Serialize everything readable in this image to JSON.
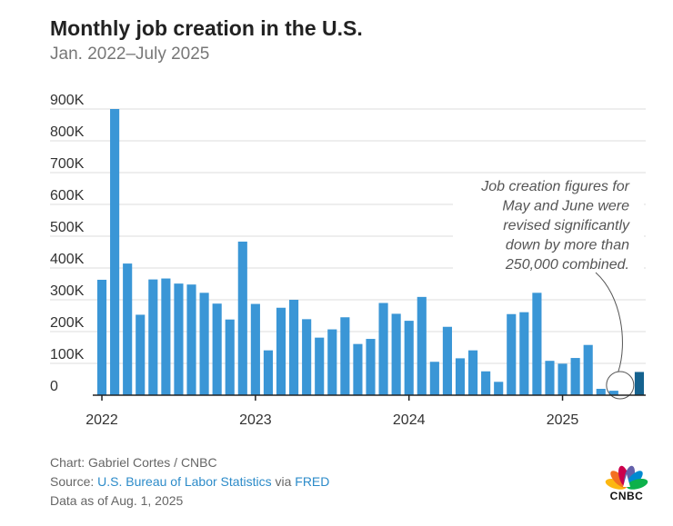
{
  "title": "Monthly job creation in the U.S.",
  "subtitle": "Jan. 2022–July 2025",
  "chart_data": {
    "type": "bar",
    "title": "Monthly job creation in the U.S.",
    "subtitle": "Jan. 2022–July 2025",
    "ylim": [
      0,
      900000
    ],
    "y_ticks": [
      0,
      100000,
      200000,
      300000,
      400000,
      500000,
      600000,
      700000,
      800000,
      900000
    ],
    "y_tick_labels": [
      "0",
      "100K",
      "200K",
      "300K",
      "400K",
      "500K",
      "600K",
      "700K",
      "800K",
      "900K"
    ],
    "x_tick_labels": [
      "2022",
      "2023",
      "2024",
      "2025"
    ],
    "x_tick_months": [
      1,
      13,
      25,
      37
    ],
    "grid": true,
    "categories": [
      "Jan 2022",
      "Feb 2022",
      "Mar 2022",
      "Apr 2022",
      "May 2022",
      "Jun 2022",
      "Jul 2022",
      "Aug 2022",
      "Sep 2022",
      "Oct 2022",
      "Nov 2022",
      "Dec 2022",
      "Jan 2023",
      "Feb 2023",
      "Mar 2023",
      "Apr 2023",
      "May 2023",
      "Jun 2023",
      "Jul 2023",
      "Aug 2023",
      "Sep 2023",
      "Oct 2023",
      "Nov 2023",
      "Dec 2023",
      "Jan 2024",
      "Feb 2024",
      "Mar 2024",
      "Apr 2024",
      "May 2024",
      "Jun 2024",
      "Jul 2024",
      "Aug 2024",
      "Sep 2024",
      "Oct 2024",
      "Nov 2024",
      "Dec 2024",
      "Jan 2025",
      "Feb 2025",
      "Mar 2025",
      "Apr 2025",
      "May 2025",
      "Jun 2025",
      "Jul 2025"
    ],
    "values": [
      363000,
      900000,
      414000,
      253000,
      364000,
      367000,
      351000,
      348000,
      322000,
      288000,
      238000,
      483000,
      287000,
      141000,
      275000,
      300000,
      239000,
      181000,
      207000,
      245000,
      161000,
      177000,
      290000,
      256000,
      234000,
      309000,
      105000,
      215000,
      116000,
      141000,
      75000,
      42000,
      255000,
      261000,
      322000,
      108000,
      99000,
      117000,
      158000,
      20000,
      14000,
      0,
      73000
    ],
    "highlight_index": 42,
    "bar_color": "#3a96d6",
    "highlight_color": "#15628f",
    "annotation": {
      "lines": [
        "Job creation figures for",
        "May and June were",
        "revised significantly",
        "down by more than",
        "250,000 combined."
      ],
      "target_months": [
        "May 2025",
        "Jun 2025"
      ]
    }
  },
  "footer": {
    "chart_prefix": "Chart: ",
    "chart_author": "Gabriel Cortes / CNBC",
    "source_prefix": "Source: ",
    "source_link": "U.S. Bureau of Labor Statistics",
    "source_via": " via ",
    "source_fred": "FRED",
    "data_as_of": "Data as of Aug. 1, 2025"
  },
  "logo": {
    "text": "CNBC",
    "colors": [
      "#fcb711",
      "#f37021",
      "#cc004c",
      "#6460aa",
      "#0089d0",
      "#0db14b"
    ]
  }
}
